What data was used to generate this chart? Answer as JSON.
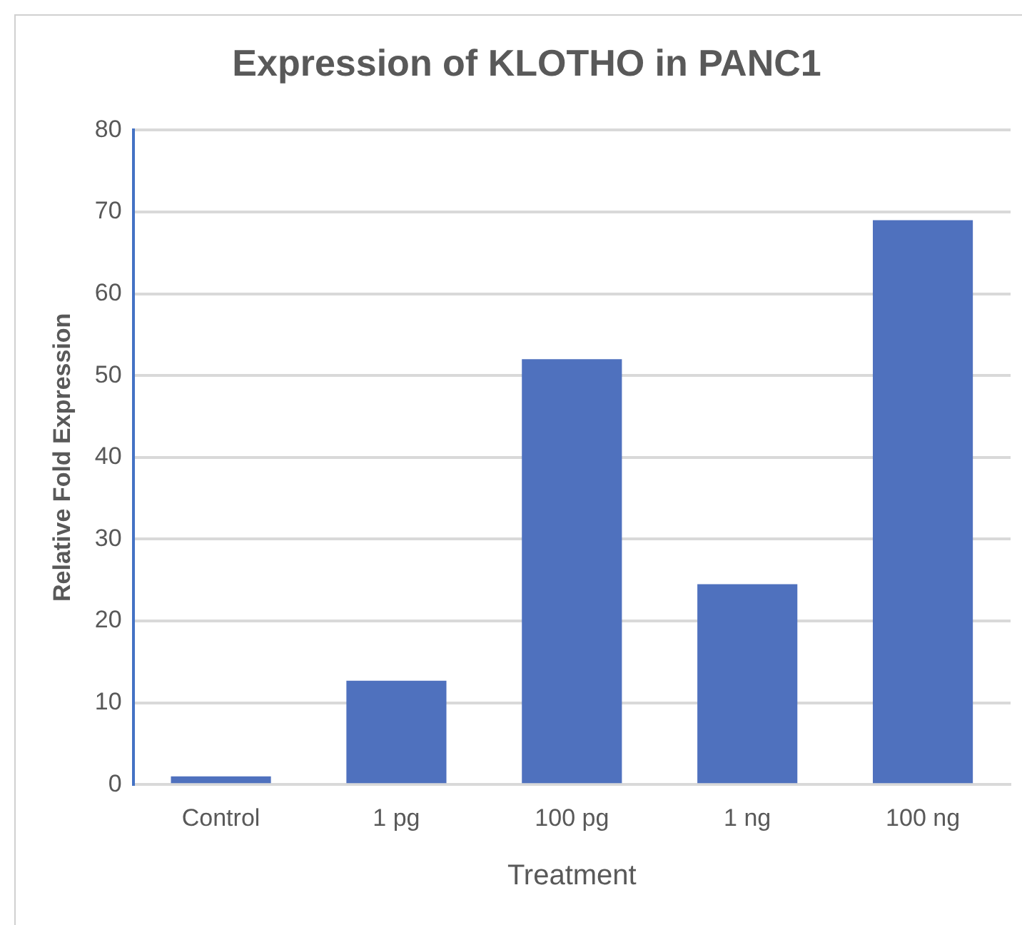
{
  "chart_data": {
    "type": "bar",
    "title": "Expression of KLOTHO in PANC1",
    "xlabel": "Treatment",
    "ylabel": "Relative Fold Expression",
    "categories": [
      "Control",
      "1 pg",
      "100 pg",
      "1 ng",
      "100 ng"
    ],
    "values": [
      1,
      12.7,
      52,
      24.5,
      69
    ],
    "color": "#4f71be",
    "ylim": [
      0,
      80
    ],
    "yticks": [
      0,
      10,
      20,
      30,
      40,
      50,
      60,
      70,
      80
    ],
    "grid": "y"
  }
}
